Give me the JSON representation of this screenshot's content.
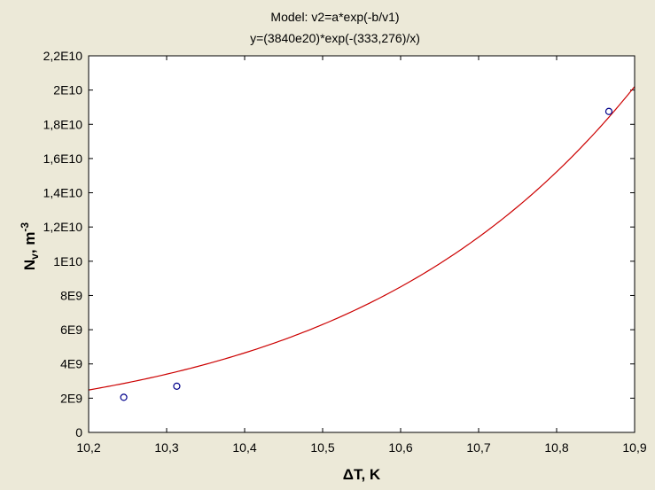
{
  "chart_data": {
    "type": "scatter",
    "title": "Model: v2=a*exp(-b/v1)",
    "subtitle": "y=(3840e20)*exp(-(333,276)/x)",
    "xlabel": "ΔT, K",
    "ylabel_main": "N",
    "ylabel_sub": "v",
    "ylabel_rest": ", m",
    "ylabel_sup": "-3",
    "xlim": [
      10.2,
      10.9
    ],
    "ylim": [
      0,
      22000000000
    ],
    "x_ticks": [
      {
        "v": 10.2,
        "label": "10,2"
      },
      {
        "v": 10.3,
        "label": "10,3"
      },
      {
        "v": 10.4,
        "label": "10,4"
      },
      {
        "v": 10.5,
        "label": "10,5"
      },
      {
        "v": 10.6,
        "label": "10,6"
      },
      {
        "v": 10.7,
        "label": "10,7"
      },
      {
        "v": 10.8,
        "label": "10,8"
      },
      {
        "v": 10.9,
        "label": "10,9"
      }
    ],
    "y_ticks": [
      {
        "v": 0,
        "label": "0"
      },
      {
        "v": 2000000000,
        "label": "2E9"
      },
      {
        "v": 4000000000,
        "label": "4E9"
      },
      {
        "v": 6000000000,
        "label": "6E9"
      },
      {
        "v": 8000000000,
        "label": "8E9"
      },
      {
        "v": 10000000000,
        "label": "1E10"
      },
      {
        "v": 12000000000,
        "label": "1,2E10"
      },
      {
        "v": 14000000000,
        "label": "1,4E10"
      },
      {
        "v": 16000000000,
        "label": "1,6E10"
      },
      {
        "v": 18000000000,
        "label": "1,8E10"
      },
      {
        "v": 20000000000,
        "label": "2E10"
      },
      {
        "v": 22000000000,
        "label": "2,2E10"
      }
    ],
    "points": [
      {
        "x": 10.245,
        "y": 2050000000
      },
      {
        "x": 10.313,
        "y": 2700000000
      },
      {
        "x": 10.867,
        "y": 18750000000
      }
    ],
    "fit_curve": [
      {
        "x": 10.2,
        "y": 2450000000
      },
      {
        "x": 10.3,
        "y": 3450000000
      },
      {
        "x": 10.4,
        "y": 4600000000
      },
      {
        "x": 10.5,
        "y": 6300000000
      },
      {
        "x": 10.6,
        "y": 8550000000
      },
      {
        "x": 10.7,
        "y": 11500000000
      },
      {
        "x": 10.8,
        "y": 15400000000
      },
      {
        "x": 10.9,
        "y": 20100000000
      }
    ],
    "grid": false,
    "colors": {
      "point": "#00008b",
      "curve": "#cc0000",
      "plot_bg": "#ffffff",
      "page_bg": "#ece9d8"
    }
  }
}
